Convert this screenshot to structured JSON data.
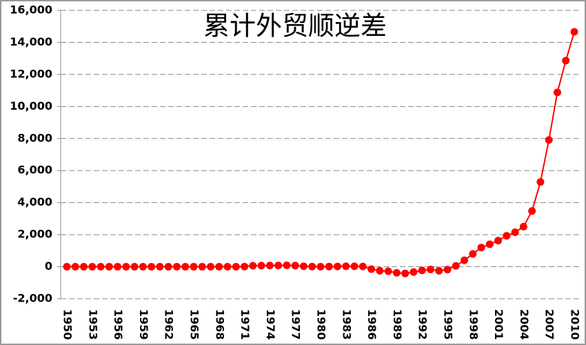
{
  "chart_data": {
    "type": "line",
    "title": "累计外贸顺逆差",
    "categories": [
      "1950",
      null,
      null,
      "1953",
      null,
      null,
      "1956",
      null,
      null,
      "1959",
      null,
      null,
      "1962",
      null,
      null,
      "1965",
      null,
      null,
      "1968",
      null,
      null,
      "1971",
      null,
      null,
      "1974",
      null,
      null,
      "1977",
      null,
      null,
      "1980",
      null,
      null,
      "1983",
      null,
      null,
      "1986",
      null,
      null,
      "1989",
      null,
      null,
      "1992",
      null,
      null,
      "1995",
      null,
      null,
      "1998",
      null,
      null,
      "2001",
      null,
      null,
      "2004",
      null,
      null,
      "2007",
      null,
      null,
      "2010"
    ],
    "values": [
      0,
      0,
      0,
      0,
      0,
      0,
      0,
      0,
      0,
      0,
      0,
      0,
      0,
      0,
      0,
      0,
      0,
      0,
      0,
      0,
      0,
      10,
      60,
      70,
      80,
      80,
      90,
      70,
      30,
      10,
      0,
      10,
      20,
      30,
      30,
      20,
      -150,
      -250,
      -280,
      -380,
      -420,
      -330,
      -230,
      -170,
      -250,
      -180,
      50,
      400,
      800,
      1200,
      1400,
      1630,
      1930,
      2150,
      2500,
      3480,
      5290,
      7910,
      10880,
      12860,
      14660
    ],
    "color": "#ff0000",
    "ylim": [
      -2000,
      16000
    ],
    "yticks": [
      {
        "value": -2000,
        "label": "-2,000"
      },
      0,
      {
        "value": 2000,
        "label": "2,000"
      },
      {
        "value": 4000,
        "label": "4,000"
      },
      {
        "value": 6000,
        "label": "6,000"
      },
      {
        "value": 8000,
        "label": "8,000"
      },
      {
        "value": 10000,
        "label": "10,000"
      },
      {
        "value": 12000,
        "label": "12,000"
      },
      {
        "value": 14000,
        "label": "14,000"
      },
      {
        "value": 16000,
        "label": "16,000"
      }
    ],
    "grid": true
  }
}
